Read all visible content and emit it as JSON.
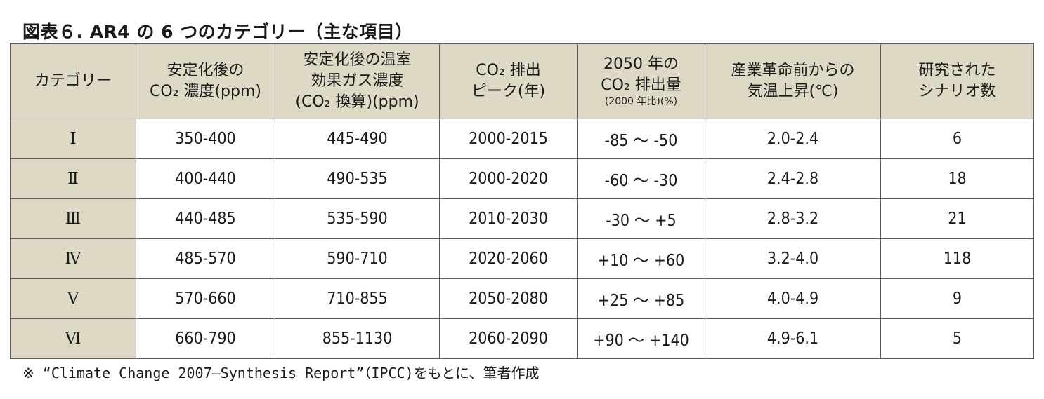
{
  "title": "図表６. AR4 の 6 つのカテゴリー（主な項目）",
  "headers": [
    {
      "lines": [
        "カテゴリー"
      ]
    },
    {
      "lines": [
        "安定化後の",
        "CO₂ 濃度(ppm)"
      ]
    },
    {
      "lines": [
        "安定化後の温室",
        "効果ガス濃度",
        "(CO₂ 換算)(ppm)"
      ]
    },
    {
      "lines": [
        "CO₂ 排出",
        "ピーク(年)"
      ]
    },
    {
      "lines": [
        "2050 年の",
        "CO₂ 排出量"
      ],
      "sub": "(2000 年比)(%)"
    },
    {
      "lines": [
        "産業革命前からの",
        "気温上昇(℃)"
      ]
    },
    {
      "lines": [
        "研究された",
        "シナリオ数"
      ]
    }
  ],
  "rows": [
    [
      "Ⅰ",
      "350-400",
      "445-490",
      "2000-2015",
      "-85 ～ -50",
      "2.0-2.4",
      "6"
    ],
    [
      "Ⅱ",
      "400-440",
      "490-535",
      "2000-2020",
      "-60 ～ -30",
      "2.4-2.8",
      "18"
    ],
    [
      "Ⅲ",
      "440-485",
      "535-590",
      "2010-2030",
      "-30 ～ +5",
      "2.8-3.2",
      "21"
    ],
    [
      "Ⅳ",
      "485-570",
      "590-710",
      "2020-2060",
      "+10 ～ +60",
      "3.2-4.0",
      "118"
    ],
    [
      "Ⅴ",
      "570-660",
      "710-855",
      "2050-2080",
      "+25 ～ +85",
      "4.0-4.9",
      "9"
    ],
    [
      "Ⅵ",
      "660-790",
      "855-1130",
      "2060-2090",
      "+90 ～ +140",
      "4.9-6.1",
      "5"
    ]
  ],
  "note": "※ “Climate Change 2007―Synthesis Report”（IPCC)をもとに、筆者作成",
  "colors": {
    "header_bg": "#ddd9c4",
    "border": "#5a5a5a"
  }
}
